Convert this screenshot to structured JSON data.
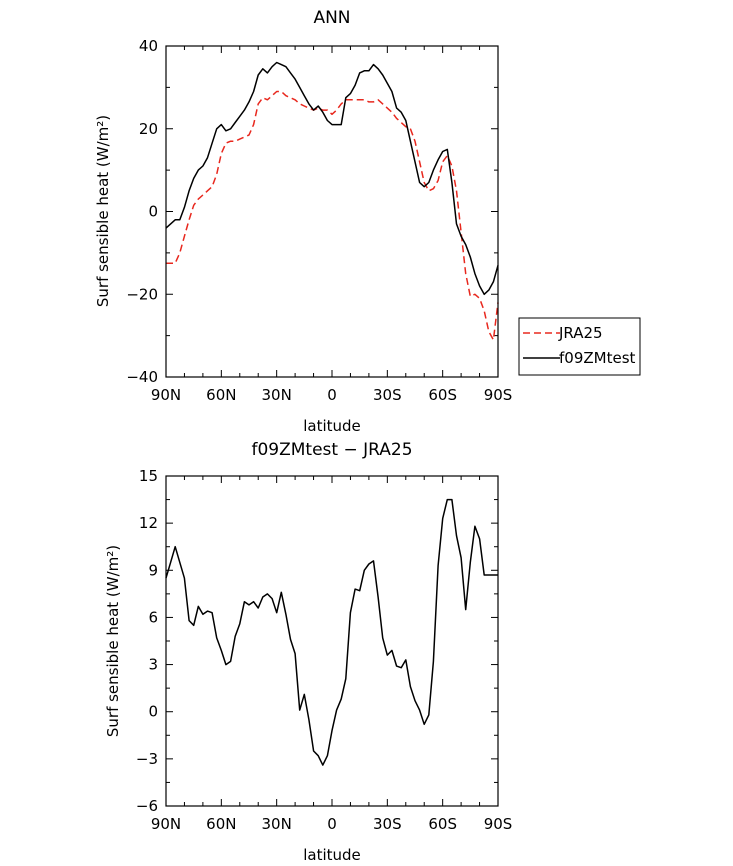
{
  "chart_data": [
    {
      "type": "line",
      "title": "ANN",
      "xlabel": "latitude",
      "ylabel": "Surf sensible heat (W/m²)",
      "xlim": [
        90,
        -90
      ],
      "ylim": [
        -40,
        40
      ],
      "x_ticks": [
        90,
        60,
        30,
        0,
        -30,
        -60,
        -90
      ],
      "x_tick_labels": [
        "90N",
        "60N",
        "30N",
        "0",
        "30S",
        "60S",
        "90S"
      ],
      "y_ticks": [
        -40,
        -20,
        0,
        20,
        40
      ],
      "y_tick_labels": [
        "−40",
        "−20",
        "0",
        "20",
        "40"
      ],
      "legend": {
        "placement": "outside-right"
      },
      "series": [
        {
          "name": "JRA25",
          "color": "#e8281e",
          "dash": "dashed",
          "x": [
            90,
            87.5,
            85,
            82.5,
            80,
            77.5,
            75,
            72.5,
            70,
            67.5,
            65,
            62.5,
            60,
            57.5,
            55,
            52.5,
            50,
            47.5,
            45,
            42.5,
            40,
            37.5,
            35,
            32.5,
            30,
            27.5,
            25,
            22.5,
            20,
            17.5,
            15,
            12.5,
            10,
            7.5,
            5,
            2.5,
            0,
            -2.5,
            -5,
            -7.5,
            -10,
            -12.5,
            -15,
            -17.5,
            -20,
            -22.5,
            -25,
            -27.5,
            -30,
            -32.5,
            -35,
            -37.5,
            -40,
            -42.5,
            -45,
            -47.5,
            -50,
            -52.5,
            -55,
            -57.5,
            -60,
            -62.5,
            -65,
            -67.5,
            -70,
            -72.5,
            -75,
            -77.5,
            -80,
            -82.5,
            -85,
            -87.5,
            -90
          ],
          "values": [
            -12.5,
            -12.5,
            -12.5,
            -10,
            -6,
            -2,
            1.5,
            3,
            4,
            5,
            6,
            9,
            14,
            16.5,
            17,
            17,
            17.5,
            18,
            18.5,
            21,
            26,
            27.5,
            27,
            28,
            29,
            29,
            28,
            27.5,
            27,
            26,
            25.5,
            25,
            24.5,
            25,
            24.5,
            24.5,
            23.5,
            24.5,
            26,
            27,
            27,
            27,
            27,
            27,
            26.5,
            26.5,
            27,
            26,
            25,
            24,
            22.5,
            21.5,
            20.5,
            20,
            17,
            12,
            7,
            5,
            5.5,
            7.5,
            12,
            13.5,
            11,
            5,
            -5,
            -15,
            -20.5,
            -20,
            -21,
            -24,
            -29,
            -31,
            -22
          ]
        },
        {
          "name": "f09ZMtest",
          "color": "#000000",
          "dash": "solid",
          "x": [
            90,
            87.5,
            85,
            82.5,
            80,
            77.5,
            75,
            72.5,
            70,
            67.5,
            65,
            62.5,
            60,
            57.5,
            55,
            52.5,
            50,
            47.5,
            45,
            42.5,
            40,
            37.5,
            35,
            32.5,
            30,
            27.5,
            25,
            22.5,
            20,
            17.5,
            15,
            12.5,
            10,
            7.5,
            5,
            2.5,
            0,
            -2.5,
            -5,
            -7.5,
            -10,
            -12.5,
            -15,
            -17.5,
            -20,
            -22.5,
            -25,
            -27.5,
            -30,
            -32.5,
            -35,
            -37.5,
            -40,
            -42.5,
            -45,
            -47.5,
            -50,
            -52.5,
            -55,
            -57.5,
            -60,
            -62.5,
            -65,
            -67.5,
            -70,
            -72.5,
            -75,
            -77.5,
            -80,
            -82.5,
            -85,
            -87.5,
            -90
          ],
          "values": [
            -4,
            -3,
            -2,
            -2,
            1,
            5,
            8,
            10,
            11,
            13,
            16.5,
            20,
            21,
            19.5,
            20,
            21.5,
            23,
            24.5,
            26.5,
            29,
            33,
            34.5,
            33.5,
            35,
            36,
            35.5,
            35,
            33.5,
            32,
            30,
            28,
            26,
            24.5,
            25.5,
            24,
            22,
            21,
            21,
            21,
            27.5,
            28.5,
            30.5,
            33.5,
            34,
            34,
            35.5,
            34.5,
            33,
            31,
            29,
            25,
            24,
            22,
            17,
            12,
            7,
            6,
            7,
            10,
            12.5,
            14.5,
            15,
            7,
            -3,
            -6,
            -8,
            -11,
            -15,
            -18,
            -20,
            -19,
            -17,
            -13
          ]
        }
      ]
    },
    {
      "type": "line",
      "title": "f09ZMtest − JRA25",
      "xlabel": "latitude",
      "ylabel": "Surf sensible heat (W/m²)",
      "xlim": [
        90,
        -90
      ],
      "ylim": [
        -6,
        15
      ],
      "x_ticks": [
        90,
        60,
        30,
        0,
        -30,
        -60,
        -90
      ],
      "x_tick_labels": [
        "90N",
        "60N",
        "30N",
        "0",
        "30S",
        "60S",
        "90S"
      ],
      "y_ticks": [
        -6,
        -3,
        0,
        3,
        6,
        9,
        12,
        15
      ],
      "y_tick_labels": [
        "−6",
        "−3",
        "0",
        "3",
        "6",
        "9",
        "12",
        "15"
      ],
      "series": [
        {
          "color": "#000000",
          "dash": "solid",
          "x": [
            90,
            87.5,
            85,
            82.5,
            80,
            77.5,
            75,
            72.5,
            70,
            67.5,
            65,
            62.5,
            60,
            57.5,
            55,
            52.5,
            50,
            47.5,
            45,
            42.5,
            40,
            37.5,
            35,
            32.5,
            30,
            27.5,
            25,
            22.5,
            20,
            17.5,
            15,
            12.5,
            10,
            7.5,
            5,
            2.5,
            0,
            -2.5,
            -5,
            -7.5,
            -10,
            -12.5,
            -15,
            -17.5,
            -20,
            -22.5,
            -25,
            -27.5,
            -30,
            -32.5,
            -35,
            -37.5,
            -40,
            -42.5,
            -45,
            -47.5,
            -50,
            -52.5,
            -55,
            -57.5,
            -60,
            -62.5,
            -65,
            -67.5,
            -70,
            -72.5,
            -75,
            -77.5,
            -80,
            -82.5,
            -85,
            -87.5,
            -90
          ],
          "values": [
            8.5,
            9.5,
            10.5,
            9.5,
            8.5,
            5.8,
            5.5,
            6.7,
            6.2,
            6.4,
            6.3,
            4.7,
            3.9,
            3,
            3.2,
            4.8,
            5.6,
            7,
            6.8,
            7,
            6.6,
            7.3,
            7.5,
            7.2,
            6.3,
            7.6,
            6.2,
            4.6,
            3.7,
            0.1,
            1.1,
            -0.5,
            -2.5,
            -2.8,
            -3.4,
            -2.8,
            -1.2,
            0.1,
            0.8,
            2.1,
            6.3,
            7.8,
            7.7,
            9,
            9.4,
            9.6,
            7.3,
            4.7,
            3.6,
            3.9,
            2.9,
            2.8,
            3.3,
            1.6,
            0.7,
            0.1,
            -0.8,
            -0.2,
            3.2,
            9.3,
            12.3,
            13.5,
            13.5,
            11.2,
            9.8,
            6.5,
            9.5,
            11.8,
            11,
            8.7,
            8.7,
            8.7,
            8.7
          ]
        }
      ]
    }
  ]
}
